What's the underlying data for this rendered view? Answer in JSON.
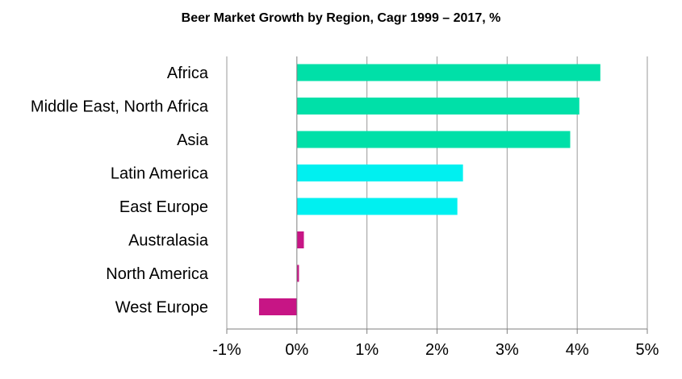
{
  "chart_data": {
    "type": "bar",
    "orientation": "horizontal",
    "title": "Beer Market Growth by Region, Cagr 1999 – 2017, %",
    "xlabel": "",
    "ylabel": "",
    "xlim": [
      -1,
      5
    ],
    "x_ticks": [
      -1,
      0,
      1,
      2,
      3,
      4,
      5
    ],
    "x_tick_labels": [
      "-1%",
      "0%",
      "1%",
      "2%",
      "3%",
      "4%",
      "5%"
    ],
    "grid": "vertical",
    "categories": [
      "Africa",
      "Middle East, North Africa",
      "Asia",
      "Latin America",
      "East Europe",
      "Australasia",
      "North America",
      "West Europe"
    ],
    "values": [
      4.33,
      4.03,
      3.9,
      2.37,
      2.29,
      0.1,
      0.03,
      -0.54
    ],
    "bar_colors": [
      "#00E0A8",
      "#00E0A8",
      "#00E0A8",
      "#00F0F0",
      "#00F0F0",
      "#C71585",
      "#C71585",
      "#C71585"
    ]
  }
}
